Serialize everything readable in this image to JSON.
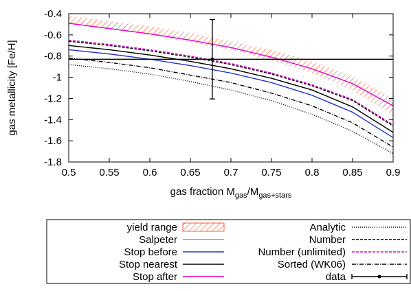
{
  "chart_data": {
    "type": "line",
    "ylabel": "gas metallicity [Fe/H]",
    "xlabel_parts": [
      "gas fraction M",
      "gas",
      "/M",
      "gas+stars"
    ],
    "xlim": [
      0.5,
      0.9
    ],
    "ylim": [
      -1.8,
      -0.4
    ],
    "xticks": [
      0.5,
      0.55,
      0.6,
      0.65,
      0.7,
      0.75,
      0.8,
      0.85,
      0.9
    ],
    "yticks": [
      -0.4,
      -0.6,
      -0.8,
      -1,
      -1.2,
      -1.4,
      -1.6,
      -1.8
    ],
    "x": [
      0.5,
      0.55,
      0.6,
      0.65,
      0.7,
      0.75,
      0.8,
      0.85,
      0.9
    ],
    "series": [
      {
        "name": "yield range",
        "kind": "band",
        "color": "#ff3300",
        "upper": [
          -0.42,
          -0.47,
          -0.52,
          -0.58,
          -0.66,
          -0.74,
          -0.85,
          -0.99,
          -1.2
        ],
        "lower": [
          -0.5,
          -0.55,
          -0.6,
          -0.67,
          -0.74,
          -0.84,
          -0.96,
          -1.12,
          -1.36
        ]
      },
      {
        "name": "Salpeter",
        "color": "#999999",
        "dash": "none",
        "values": [
          -0.7,
          -0.74,
          -0.79,
          -0.85,
          -0.92,
          -1.01,
          -1.12,
          -1.28,
          -1.52
        ]
      },
      {
        "name": "Stop before",
        "color": "#2233cc",
        "dash": "none",
        "values": [
          -0.74,
          -0.78,
          -0.83,
          -0.89,
          -0.96,
          -1.05,
          -1.17,
          -1.33,
          -1.57
        ]
      },
      {
        "name": "Stop nearest",
        "color": "#000000",
        "dash": "none",
        "values": [
          -0.7,
          -0.74,
          -0.79,
          -0.85,
          -0.92,
          -1.01,
          -1.12,
          -1.28,
          -1.52
        ]
      },
      {
        "name": "Stop after",
        "color": "#dd00cc",
        "dash": "none",
        "values": [
          -0.49,
          -0.54,
          -0.59,
          -0.65,
          -0.72,
          -0.81,
          -0.92,
          -1.06,
          -1.27
        ]
      },
      {
        "name": "Analytic",
        "color": "#000000",
        "dash": "1 2",
        "values": [
          -0.88,
          -0.92,
          -0.97,
          -1.04,
          -1.12,
          -1.22,
          -1.35,
          -1.51,
          -1.72
        ]
      },
      {
        "name": "Number",
        "color": "#000000",
        "dash": "4 2",
        "values": [
          -0.66,
          -0.7,
          -0.75,
          -0.81,
          -0.88,
          -0.97,
          -1.08,
          -1.22,
          -1.46
        ]
      },
      {
        "name": "Number (unlimited)",
        "color": "#dd00cc",
        "dash": "4 2",
        "values": [
          -0.65,
          -0.69,
          -0.74,
          -0.8,
          -0.87,
          -0.96,
          -1.07,
          -1.21,
          -1.45
        ]
      },
      {
        "name": "Sorted (WK06)",
        "color": "#000000",
        "dash": "6 2 1 2",
        "values": [
          -0.82,
          -0.86,
          -0.91,
          -0.98,
          -1.05,
          -1.15,
          -1.27,
          -1.43,
          -1.66
        ]
      },
      {
        "name": "data",
        "kind": "points",
        "color": "#000000",
        "x": [
          0.677
        ],
        "values": [
          -0.83
        ],
        "yerr": [
          0.375
        ],
        "xerr": [
          0.25
        ]
      }
    ]
  }
}
